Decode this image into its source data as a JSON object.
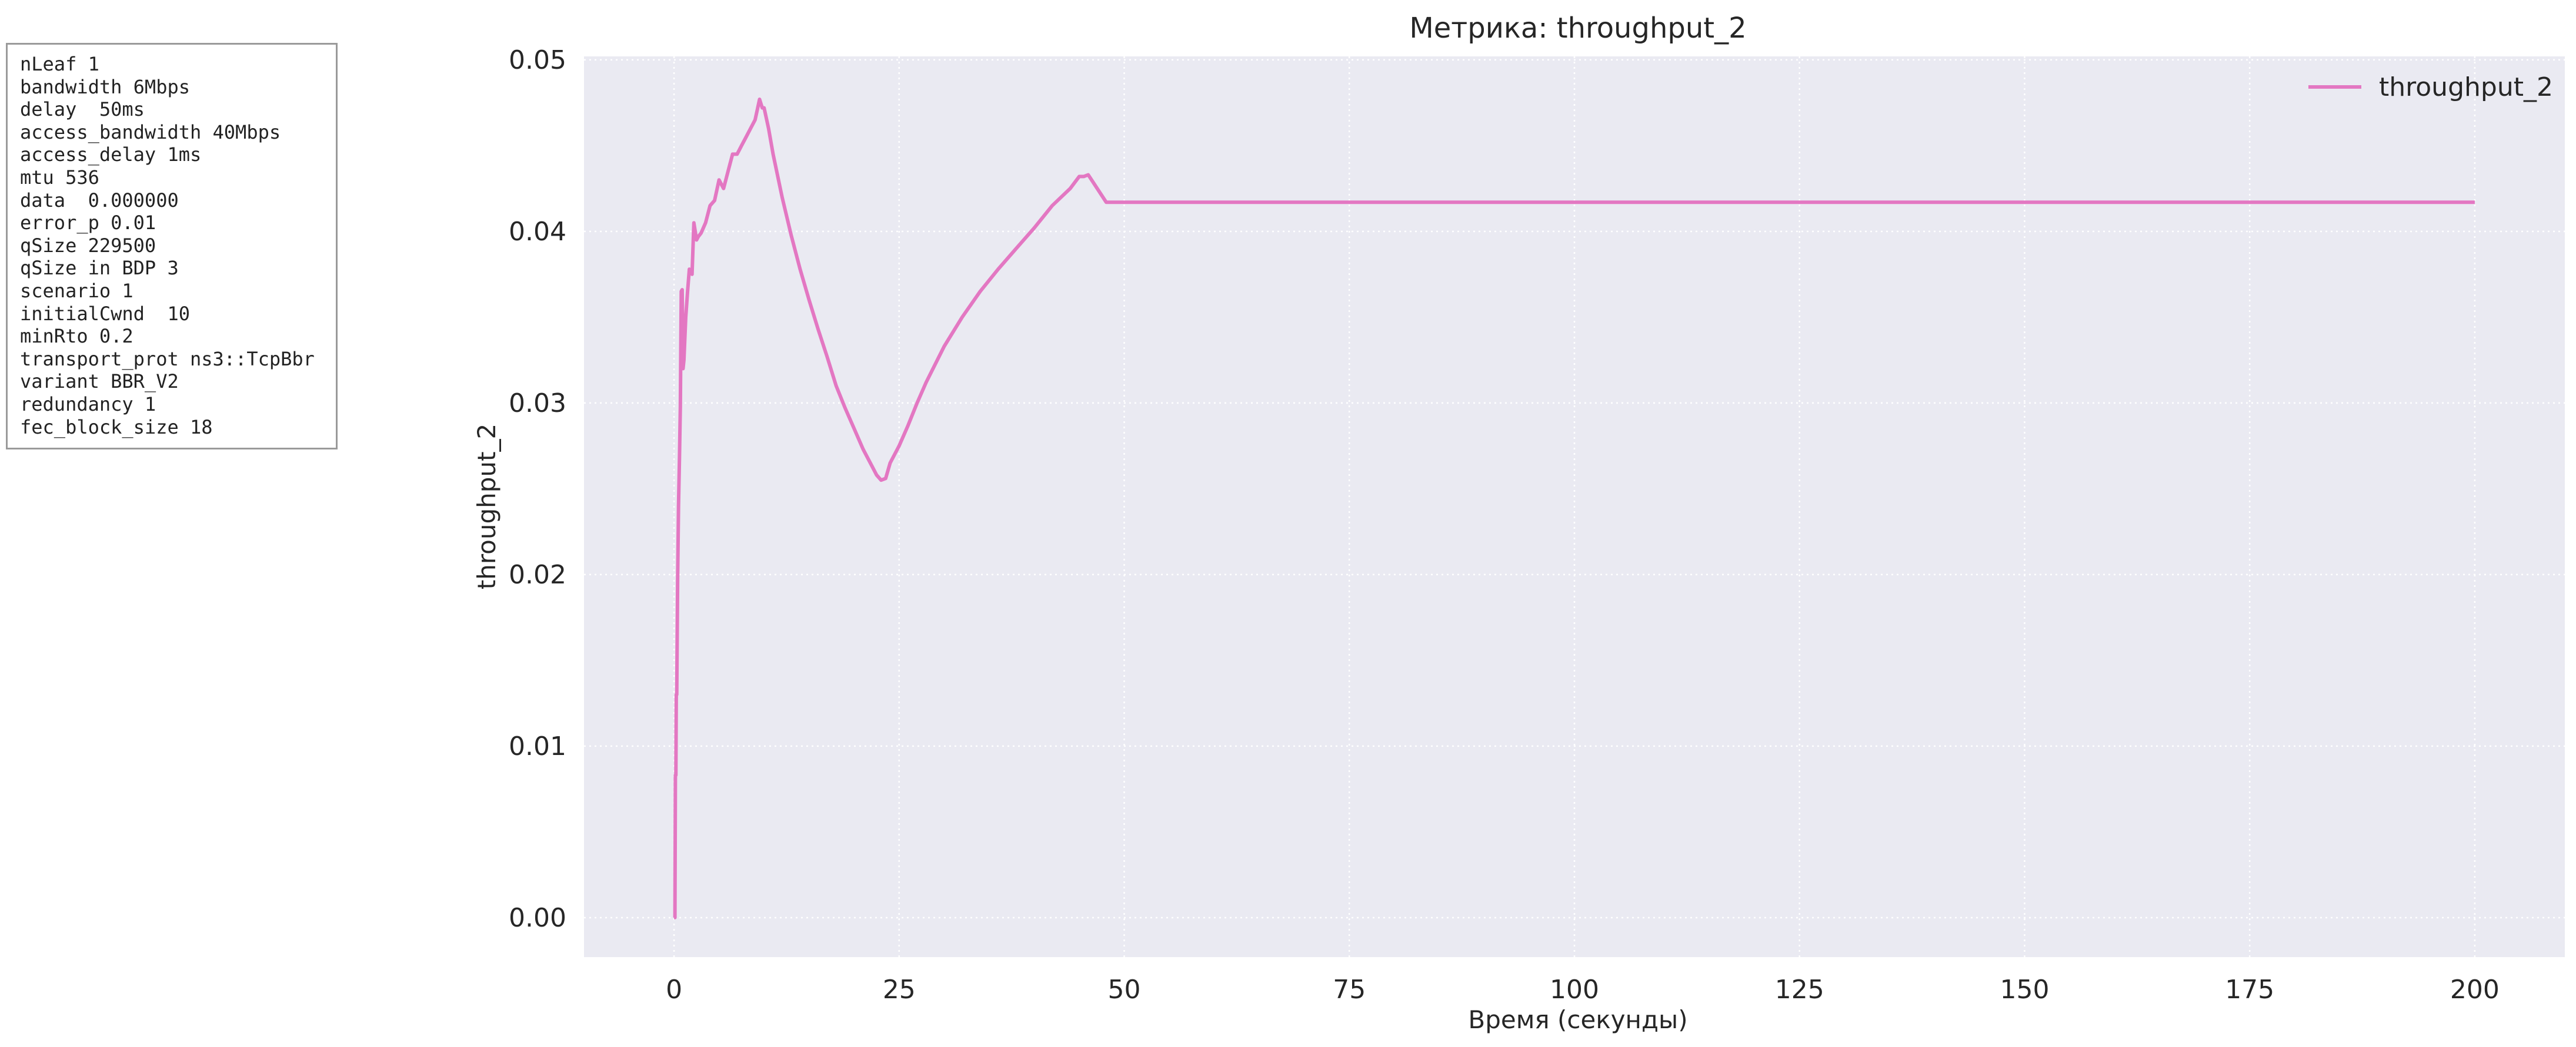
{
  "params_box": {
    "lines": [
      "nLeaf 1",
      "bandwidth 6Mbps",
      "delay  50ms",
      "access_bandwidth 40Mbps",
      "access_delay 1ms",
      "mtu 536",
      "data  0.000000",
      "error_p 0.01",
      "qSize 229500",
      "qSize in BDP 3",
      "scenario 1",
      "initialCwnd  10",
      "minRto 0.2",
      "transport_prot ns3::TcpBbr",
      "variant BBR_V2",
      "redundancy 1",
      "fec_block_size 18"
    ]
  },
  "chart_data": {
    "type": "line",
    "title": "Метрика: throughput_2",
    "xlabel": "Время (секунды)",
    "ylabel": "throughput_2",
    "xlim": [
      -10,
      210
    ],
    "ylim": [
      -0.0023,
      0.0502
    ],
    "xticks": [
      0,
      25,
      50,
      75,
      100,
      125,
      150,
      175,
      200
    ],
    "xtick_labels": [
      "0",
      "25",
      "50",
      "75",
      "100",
      "125",
      "150",
      "175",
      "200"
    ],
    "yticks": [
      0.0,
      0.01,
      0.02,
      0.03,
      0.04,
      0.05
    ],
    "ytick_labels": [
      "0.00",
      "0.01",
      "0.02",
      "0.03",
      "0.04",
      "0.05"
    ],
    "grid": true,
    "legend_position": "top-right",
    "colors": {
      "plot_bg": "#eaeaf2",
      "grid": "#ffffff",
      "series": "#e377c2",
      "text": "#262626"
    },
    "series": [
      {
        "name": "throughput_2",
        "x": [
          0,
          0.1,
          0.15,
          0.2,
          0.25,
          0.3,
          0.4,
          0.5,
          0.6,
          0.7,
          0.8,
          0.9,
          1.0,
          1.1,
          1.2,
          1.3,
          1.5,
          1.7,
          2.0,
          2.2,
          2.5,
          2.7,
          3,
          3.5,
          4,
          4.5,
          5,
          5.5,
          6,
          6.5,
          7,
          7.5,
          8,
          8.5,
          9,
          9.5,
          9.8,
          10,
          10.5,
          11,
          12,
          13,
          14,
          15,
          16,
          17,
          18,
          19,
          20,
          21,
          22,
          22.5,
          23,
          23.5,
          24,
          25,
          26,
          27,
          28,
          30,
          32,
          34,
          36,
          38,
          40,
          42,
          44,
          45,
          45.5,
          46,
          47,
          48,
          50,
          75,
          100,
          125,
          150,
          175,
          200
        ],
        "values": [
          0.0,
          0.0,
          0.0083,
          0.0083,
          0.013,
          0.013,
          0.0197,
          0.024,
          0.0268,
          0.0298,
          0.0365,
          0.0366,
          0.032,
          0.0325,
          0.0338,
          0.035,
          0.0365,
          0.0378,
          0.0375,
          0.0405,
          0.0395,
          0.0397,
          0.0399,
          0.0405,
          0.0415,
          0.0418,
          0.043,
          0.0425,
          0.0435,
          0.0445,
          0.0445,
          0.045,
          0.0455,
          0.046,
          0.0465,
          0.0477,
          0.0472,
          0.0472,
          0.046,
          0.0445,
          0.042,
          0.0398,
          0.0378,
          0.036,
          0.0343,
          0.0327,
          0.031,
          0.0297,
          0.0285,
          0.0273,
          0.0263,
          0.0258,
          0.0255,
          0.0256,
          0.0265,
          0.0275,
          0.0287,
          0.03,
          0.0312,
          0.0333,
          0.035,
          0.0365,
          0.0378,
          0.039,
          0.0402,
          0.0415,
          0.0425,
          0.0432,
          0.0432,
          0.0433,
          0.0425,
          0.0417,
          0.0417,
          0.0417,
          0.0417,
          0.0417,
          0.0417,
          0.0417,
          0.0417
        ]
      }
    ]
  }
}
